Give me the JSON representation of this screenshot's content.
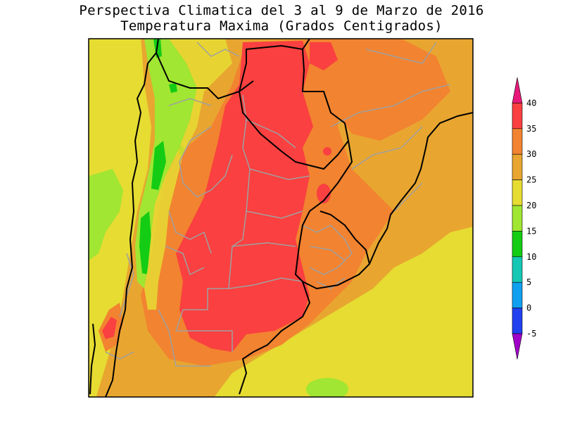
{
  "title": "Perspectiva Climatica del 3 al 9 de Marzo de 2016",
  "subtitle": "Temperatura Maxima (Grados Centigrados)",
  "colorbar": {
    "labels": [
      "40",
      "35",
      "30",
      "25",
      "20",
      "15",
      "10",
      "5",
      "0",
      "-5"
    ],
    "bins": [
      {
        "range": "> 40",
        "color": "#e8187a"
      },
      {
        "range": "35-40",
        "color": "#fa4040"
      },
      {
        "range": "30-35",
        "color": "#f28330"
      },
      {
        "range": "25-30",
        "color": "#e8a630"
      },
      {
        "range": "20-25",
        "color": "#e6dc32"
      },
      {
        "range": "15-20",
        "color": "#a0e632"
      },
      {
        "range": "10-15",
        "color": "#14cc14"
      },
      {
        "range": "5-10",
        "color": "#14c8b4"
      },
      {
        "range": "0-5",
        "color": "#10a0f0"
      },
      {
        "range": "-5-0",
        "color": "#2040f0"
      },
      {
        "range": "< -5",
        "color": "#a000c8"
      }
    ]
  }
}
